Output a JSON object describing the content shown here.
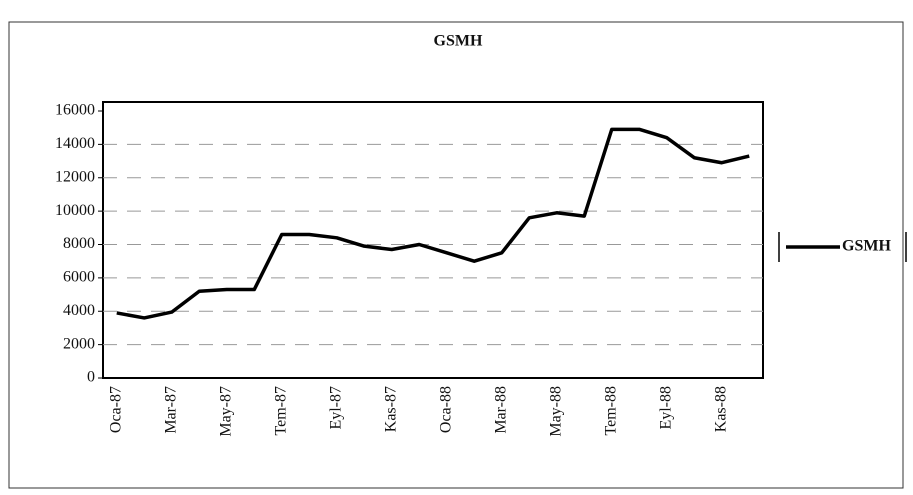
{
  "chart_data": {
    "type": "line",
    "title": "GSMH",
    "categories": [
      "Oca-87",
      null,
      "Mar-87",
      null,
      "May-87",
      null,
      "Tem-87",
      null,
      "Eyl-87",
      null,
      "Kas-87",
      null,
      "Oca-88",
      null,
      "Mar-88",
      null,
      "May-88",
      null,
      "Tem-88",
      null,
      "Eyl-88",
      null,
      "Kas-88",
      null
    ],
    "series": [
      {
        "name": "GSMH",
        "color": "#000000",
        "values": [
          3900,
          3600,
          3950,
          5200,
          5300,
          5300,
          8600,
          8600,
          8400,
          7900,
          7700,
          8000,
          7500,
          7000,
          7500,
          9600,
          9900,
          9700,
          14900,
          14900,
          14400,
          13200,
          12900,
          13300
        ]
      }
    ],
    "ylim": [
      0,
      16000
    ],
    "yticks": [
      0,
      2000,
      4000,
      6000,
      8000,
      10000,
      12000,
      14000,
      16000
    ],
    "grid": true,
    "legend": "right"
  }
}
